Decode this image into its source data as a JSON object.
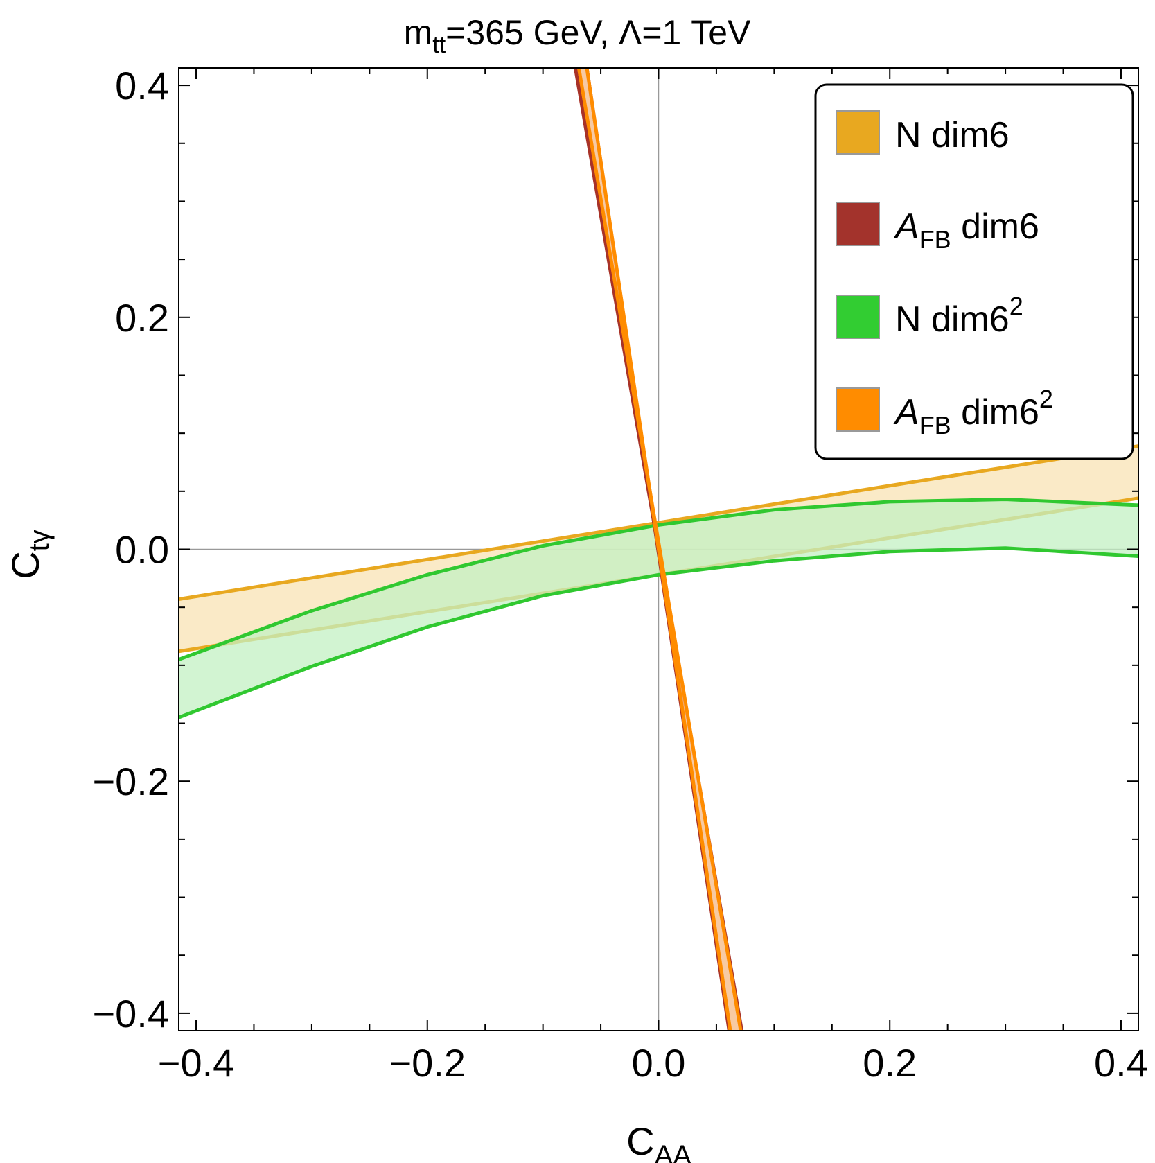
{
  "chart_data": {
    "type": "area",
    "title": {
      "main": "m",
      "sub": "tt",
      "rest": "=365 GeV, Λ=1 TeV"
    },
    "xlabel": {
      "main": "C",
      "sub": "AA"
    },
    "ylabel": {
      "main": "C",
      "sub": "tγ"
    },
    "xlim": [
      -0.415,
      0.415
    ],
    "ylim": [
      -0.415,
      0.415
    ],
    "xticks": [
      -0.4,
      -0.2,
      0.0,
      0.2,
      0.4
    ],
    "yticks": [
      -0.4,
      -0.2,
      0.0,
      0.2,
      0.4
    ],
    "xtick_labels": [
      "−0.4",
      "−0.2",
      "0.0",
      "0.2",
      "0.4"
    ],
    "ytick_labels": [
      "−0.4",
      "−0.2",
      "0.0",
      "0.2",
      "0.4"
    ],
    "grid": false,
    "legend_position": "top-right",
    "bands": [
      {
        "name": "N dim6",
        "label_main": "N dim6",
        "fill": "#F8E3B4",
        "stroke": "#E8A820",
        "swatch": "#E8A820",
        "upper": {
          "x": [
            -0.415,
            0.415
          ],
          "y": [
            -0.043,
            0.089
          ]
        },
        "lower": {
          "x": [
            -0.415,
            0.415
          ],
          "y": [
            -0.088,
            0.044
          ]
        }
      },
      {
        "name": "A_FB dim6",
        "label_main": "A",
        "label_sub": "FB",
        "label_rest": " dim6",
        "fill": "#F0A070",
        "stroke": "#A83228",
        "swatch": "#A3332C",
        "upper": {
          "x": [
            -0.072,
            0.072
          ],
          "y": [
            0.415,
            -0.415
          ]
        },
        "lower": {
          "x": [
            -0.062,
            0.061
          ],
          "y": [
            0.415,
            -0.415
          ]
        }
      },
      {
        "name": "N dim6^2",
        "label_main": "N  dim6",
        "label_sup": "2",
        "fill": "#C3F0C3",
        "stroke": "#30C830",
        "swatch": "#32CD32",
        "upper": {
          "x": [
            -0.415,
            -0.3,
            -0.2,
            -0.1,
            0.0,
            0.1,
            0.2,
            0.3,
            0.415
          ],
          "y": [
            -0.095,
            -0.053,
            -0.022,
            0.003,
            0.021,
            0.034,
            0.041,
            0.043,
            0.038
          ]
        },
        "lower": {
          "x": [
            -0.415,
            -0.3,
            -0.2,
            -0.1,
            0.0,
            0.1,
            0.2,
            0.3,
            0.415
          ],
          "y": [
            -0.145,
            -0.101,
            -0.067,
            -0.04,
            -0.022,
            -0.01,
            -0.002,
            0.001,
            -0.006
          ]
        }
      },
      {
        "name": "A_FB dim6^2",
        "label_main": "A",
        "label_sub": "FB",
        "label_rest": "  dim6",
        "label_sup": "2",
        "fill": "#F8D0A8",
        "stroke": "#FF8C00",
        "swatch": "#FF8C00",
        "upper": {
          "x": [
            -0.069,
            0.071
          ],
          "y": [
            0.415,
            -0.415
          ]
        },
        "lower": {
          "x": [
            -0.062,
            0.062
          ],
          "y": [
            0.415,
            -0.415
          ]
        }
      }
    ]
  }
}
